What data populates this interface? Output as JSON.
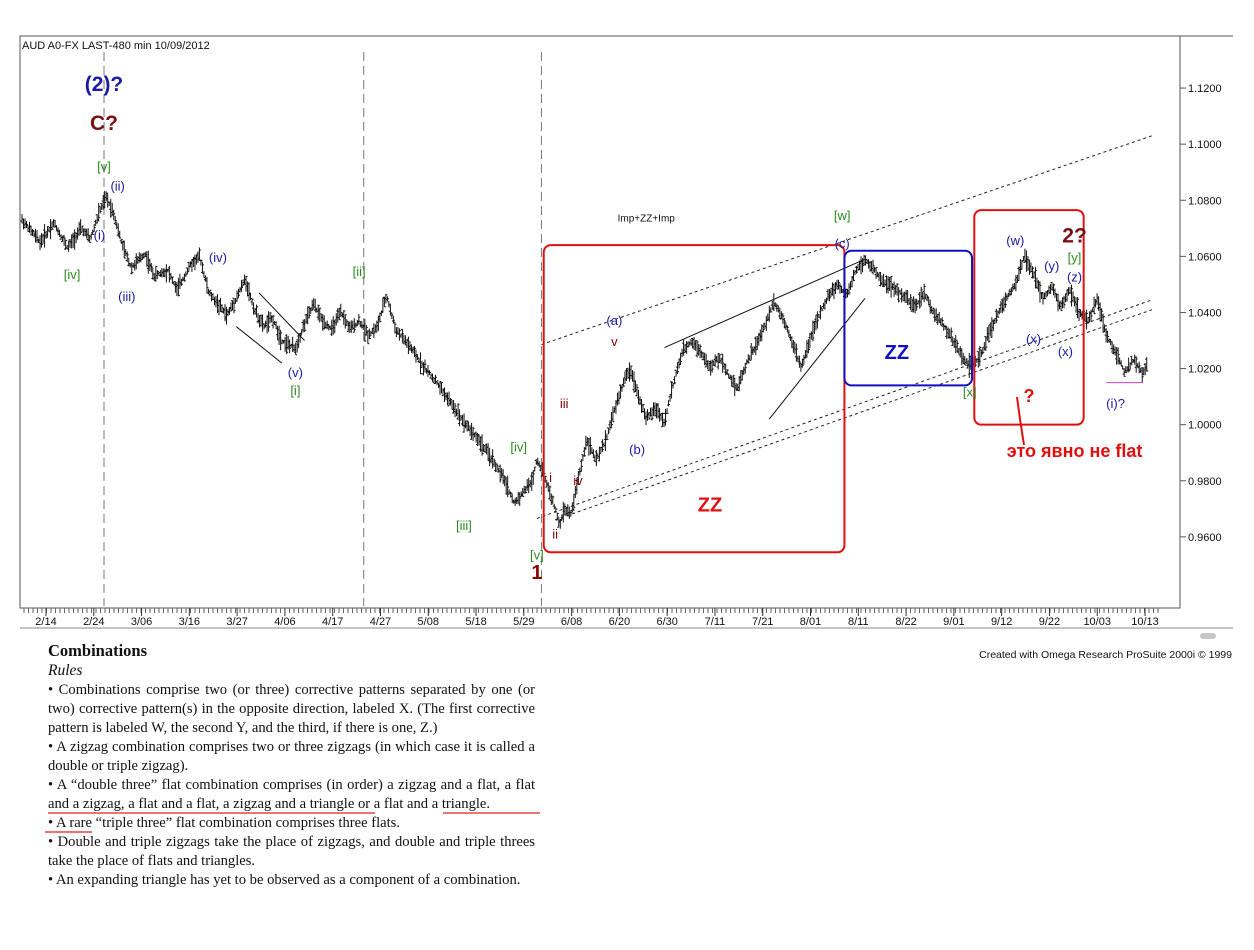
{
  "chart_data": {
    "type": "bar",
    "style": "OHLC price bars",
    "title": "AUD A0-FX LAST-480 min   10/09/2012",
    "credit": "Created with Omega Research ProSuite 2000i © 1999",
    "x_tick_labels": [
      "2/14",
      "2/24",
      "3/06",
      "3/16",
      "3/27",
      "4/06",
      "4/17",
      "4/27",
      "5/08",
      "5/18",
      "5/29",
      "6/08",
      "6/20",
      "6/30",
      "7/11",
      "7/21",
      "8/01",
      "8/11",
      "8/22",
      "9/01",
      "9/12",
      "9/22",
      "10/03",
      "10/13"
    ],
    "y_tick_labels": [
      "1.1200",
      "1.1000",
      "1.0800",
      "1.0600",
      "1.0400",
      "1.0200",
      "1.0000",
      "0.9800",
      "0.9600"
    ],
    "y_ticks": [
      1.12,
      1.1,
      1.08,
      1.06,
      1.04,
      1.02,
      1.0,
      0.98,
      0.96
    ],
    "ylim": [
      0.9375,
      1.13
    ],
    "x_range_days": [
      0,
      248
    ],
    "axis_position": "right",
    "price_path": [
      {
        "d": 0,
        "p": 1.073
      },
      {
        "d": 4,
        "p": 1.065
      },
      {
        "d": 7,
        "p": 1.072
      },
      {
        "d": 10,
        "p": 1.063
      },
      {
        "d": 13,
        "p": 1.07
      },
      {
        "d": 15,
        "p": 1.066
      },
      {
        "d": 17,
        "p": 1.076
      },
      {
        "d": 18.5,
        "p": 1.081
      },
      {
        "d": 20,
        "p": 1.076
      },
      {
        "d": 22,
        "p": 1.064
      },
      {
        "d": 24,
        "p": 1.056
      },
      {
        "d": 27,
        "p": 1.061
      },
      {
        "d": 29,
        "p": 1.053
      },
      {
        "d": 32,
        "p": 1.055
      },
      {
        "d": 34,
        "p": 1.048
      },
      {
        "d": 37,
        "p": 1.057
      },
      {
        "d": 39,
        "p": 1.06
      },
      {
        "d": 41,
        "p": 1.047
      },
      {
        "d": 43,
        "p": 1.043
      },
      {
        "d": 45,
        "p": 1.039
      },
      {
        "d": 47,
        "p": 1.045
      },
      {
        "d": 49,
        "p": 1.052
      },
      {
        "d": 51,
        "p": 1.041
      },
      {
        "d": 53,
        "p": 1.035
      },
      {
        "d": 55,
        "p": 1.038
      },
      {
        "d": 57,
        "p": 1.03
      },
      {
        "d": 60,
        "p": 1.027
      },
      {
        "d": 62,
        "p": 1.036
      },
      {
        "d": 64,
        "p": 1.043
      },
      {
        "d": 66,
        "p": 1.037
      },
      {
        "d": 68,
        "p": 1.034
      },
      {
        "d": 70,
        "p": 1.04
      },
      {
        "d": 72,
        "p": 1.034
      },
      {
        "d": 74,
        "p": 1.037
      },
      {
        "d": 76,
        "p": 1.032
      },
      {
        "d": 78,
        "p": 1.035
      },
      {
        "d": 80,
        "p": 1.046
      },
      {
        "d": 82,
        "p": 1.034
      },
      {
        "d": 85,
        "p": 1.028
      },
      {
        "d": 88,
        "p": 1.021
      },
      {
        "d": 91,
        "p": 1.015
      },
      {
        "d": 94,
        "p": 1.008
      },
      {
        "d": 97,
        "p": 1.001
      },
      {
        "d": 100,
        "p": 0.995
      },
      {
        "d": 103,
        "p": 0.988
      },
      {
        "d": 106,
        "p": 0.98
      },
      {
        "d": 108,
        "p": 0.972
      },
      {
        "d": 110,
        "p": 0.976
      },
      {
        "d": 112,
        "p": 0.98
      },
      {
        "d": 113,
        "p": 0.988
      },
      {
        "d": 115,
        "p": 0.98
      },
      {
        "d": 117,
        "p": 0.97
      },
      {
        "d": 118,
        "p": 0.964
      },
      {
        "d": 119,
        "p": 0.97
      },
      {
        "d": 120.5,
        "p": 0.968
      },
      {
        "d": 122,
        "p": 0.98
      },
      {
        "d": 124,
        "p": 0.995
      },
      {
        "d": 126,
        "p": 0.987
      },
      {
        "d": 128,
        "p": 0.994
      },
      {
        "d": 130,
        "p": 1.005
      },
      {
        "d": 132,
        "p": 1.015
      },
      {
        "d": 133.5,
        "p": 1.02
      },
      {
        "d": 135,
        "p": 1.012
      },
      {
        "d": 137,
        "p": 1.002
      },
      {
        "d": 139,
        "p": 1.006
      },
      {
        "d": 141,
        "p": 1.001
      },
      {
        "d": 143,
        "p": 1.015
      },
      {
        "d": 145,
        "p": 1.026
      },
      {
        "d": 147,
        "p": 1.03
      },
      {
        "d": 149,
        "p": 1.026
      },
      {
        "d": 151,
        "p": 1.02
      },
      {
        "d": 153,
        "p": 1.024
      },
      {
        "d": 155,
        "p": 1.018
      },
      {
        "d": 157,
        "p": 1.013
      },
      {
        "d": 159,
        "p": 1.022
      },
      {
        "d": 161,
        "p": 1.028
      },
      {
        "d": 163,
        "p": 1.035
      },
      {
        "d": 165,
        "p": 1.044
      },
      {
        "d": 167,
        "p": 1.038
      },
      {
        "d": 169,
        "p": 1.03
      },
      {
        "d": 171,
        "p": 1.02
      },
      {
        "d": 173,
        "p": 1.031
      },
      {
        "d": 175,
        "p": 1.039
      },
      {
        "d": 177,
        "p": 1.046
      },
      {
        "d": 179,
        "p": 1.05
      },
      {
        "d": 181,
        "p": 1.046
      },
      {
        "d": 183,
        "p": 1.055
      },
      {
        "d": 185,
        "p": 1.059
      },
      {
        "d": 186.5,
        "p": 1.056
      },
      {
        "d": 188,
        "p": 1.053
      },
      {
        "d": 190,
        "p": 1.05
      },
      {
        "d": 192,
        "p": 1.048
      },
      {
        "d": 194,
        "p": 1.045
      },
      {
        "d": 196,
        "p": 1.042
      },
      {
        "d": 198,
        "p": 1.047
      },
      {
        "d": 200,
        "p": 1.04
      },
      {
        "d": 202,
        "p": 1.036
      },
      {
        "d": 204,
        "p": 1.031
      },
      {
        "d": 206,
        "p": 1.025
      },
      {
        "d": 208,
        "p": 1.021
      },
      {
        "d": 210,
        "p": 1.023
      },
      {
        "d": 212,
        "p": 1.032
      },
      {
        "d": 214,
        "p": 1.039
      },
      {
        "d": 216,
        "p": 1.045
      },
      {
        "d": 218,
        "p": 1.05
      },
      {
        "d": 220,
        "p": 1.06
      },
      {
        "d": 222,
        "p": 1.054
      },
      {
        "d": 224,
        "p": 1.045
      },
      {
        "d": 226,
        "p": 1.049
      },
      {
        "d": 228,
        "p": 1.042
      },
      {
        "d": 230,
        "p": 1.048
      },
      {
        "d": 232,
        "p": 1.04
      },
      {
        "d": 234,
        "p": 1.037
      },
      {
        "d": 236,
        "p": 1.045
      },
      {
        "d": 238,
        "p": 1.032
      },
      {
        "d": 240,
        "p": 1.026
      },
      {
        "d": 242,
        "p": 1.019
      },
      {
        "d": 244,
        "p": 1.023
      },
      {
        "d": 246,
        "p": 1.018
      },
      {
        "d": 247,
        "p": 1.021
      }
    ],
    "vertical_markers_days": [
      18,
      75,
      114
    ],
    "markers": [
      {
        "text": "(2)?",
        "d": 18,
        "p": 1.119,
        "color": "#1a1aa6",
        "size": 21
      },
      {
        "text": "C?",
        "d": 18,
        "p": 1.105,
        "color": "#7a1010",
        "size": 21
      },
      {
        "text": "[v]",
        "d": 18,
        "p": 1.0905,
        "color": "#2e8b22",
        "size": 13
      },
      {
        "text": "(ii)",
        "d": 21,
        "p": 1.0835,
        "color": "#1a1aa6",
        "size": 13
      },
      {
        "text": "(i)",
        "d": 17,
        "p": 1.066,
        "color": "#1a1aa6",
        "size": 13
      },
      {
        "text": "[iv]",
        "d": 11,
        "p": 1.052,
        "color": "#2e8b22",
        "size": 13
      },
      {
        "text": "(iii)",
        "d": 23,
        "p": 1.044,
        "color": "#1a1aa6",
        "size": 13
      },
      {
        "text": "(iv)",
        "d": 43,
        "p": 1.058,
        "color": "#1a1aa6",
        "size": 13
      },
      {
        "text": "(v)",
        "d": 60,
        "p": 1.017,
        "color": "#1a1aa6",
        "size": 13
      },
      {
        "text": "[i]",
        "d": 60,
        "p": 1.0105,
        "color": "#2e8b22",
        "size": 13
      },
      {
        "text": "[ii]",
        "d": 74,
        "p": 1.053,
        "color": "#2e8b22",
        "size": 13
      },
      {
        "text": "[iii]",
        "d": 97,
        "p": 0.9625,
        "color": "#2e8b22",
        "size": 13
      },
      {
        "text": "[iv]",
        "d": 109,
        "p": 0.9905,
        "color": "#2e8b22",
        "size": 13
      },
      {
        "text": "[v]",
        "d": 113,
        "p": 0.952,
        "color": "#2e8b22",
        "size": 13
      },
      {
        "text": "1",
        "d": 113,
        "p": 0.945,
        "color": "#8b0000",
        "size": 20
      },
      {
        "text": "i",
        "d": 116,
        "p": 0.9795,
        "color": "#8b0000",
        "size": 13
      },
      {
        "text": "ii",
        "d": 117,
        "p": 0.9595,
        "color": "#8b0000",
        "size": 13
      },
      {
        "text": "iii",
        "d": 119,
        "p": 1.006,
        "color": "#8b0000",
        "size": 13
      },
      {
        "text": "iv",
        "d": 122,
        "p": 0.9785,
        "color": "#8b0000",
        "size": 13
      },
      {
        "text": "v",
        "d": 130,
        "p": 1.028,
        "color": "#8b0000",
        "size": 13
      },
      {
        "text": "(a)",
        "d": 130,
        "p": 1.0355,
        "color": "#1a1aa6",
        "size": 13
      },
      {
        "text": "(b)",
        "d": 135,
        "p": 0.9895,
        "color": "#1a1aa6",
        "size": 13
      },
      {
        "text": "Imp+ZZ+Imp",
        "d": 137,
        "p": 1.0725,
        "color": "#111111",
        "size": 10
      },
      {
        "text": "[w]",
        "d": 180,
        "p": 1.073,
        "color": "#2e8b22",
        "size": 13
      },
      {
        "text": "(c)",
        "d": 180,
        "p": 1.063,
        "color": "#1a1aa6",
        "size": 13
      },
      {
        "text": "ZZ",
        "d": 151,
        "p": 0.969,
        "color": "#e01010",
        "size": 20
      },
      {
        "text": "ZZ",
        "d": 192,
        "p": 1.0235,
        "color": "#1010c0",
        "size": 20
      },
      {
        "text": "[x]",
        "d": 208,
        "p": 1.01,
        "color": "#2e8b22",
        "size": 13
      },
      {
        "text": "(w)",
        "d": 218,
        "p": 1.064,
        "color": "#1a1aa6",
        "size": 13
      },
      {
        "text": "(y)",
        "d": 226,
        "p": 1.055,
        "color": "#1a1aa6",
        "size": 13
      },
      {
        "text": "(x)",
        "d": 222,
        "p": 1.029,
        "color": "#1a1aa6",
        "size": 13
      },
      {
        "text": "2?",
        "d": 231,
        "p": 1.065,
        "color": "#7a1010",
        "size": 21
      },
      {
        "text": "[y]",
        "d": 231,
        "p": 1.058,
        "color": "#2e8b22",
        "size": 13
      },
      {
        "text": "(z)",
        "d": 231,
        "p": 1.051,
        "color": "#1a1aa6",
        "size": 13
      },
      {
        "text": "(x)",
        "d": 229,
        "p": 1.0245,
        "color": "#1a1aa6",
        "size": 13
      },
      {
        "text": "(i)?",
        "d": 240,
        "p": 1.006,
        "color": "#1a1aa6",
        "size": 13
      },
      {
        "text": "?",
        "d": 221,
        "p": 1.008,
        "color": "#e01010",
        "size": 18
      },
      {
        "text": "это явно не flat",
        "d": 231,
        "p": 0.9885,
        "color": "#e01010",
        "size": 18
      }
    ],
    "boxes": [
      {
        "d1": 114.5,
        "d2": 180.5,
        "p1": 1.064,
        "p2": 0.9545,
        "color": "#e01010"
      },
      {
        "d1": 180.5,
        "d2": 208.5,
        "p1": 1.062,
        "p2": 1.014,
        "color": "#1010c0"
      },
      {
        "d1": 209,
        "d2": 233,
        "p1": 1.0765,
        "p2": 1.0,
        "color": "#e01010"
      }
    ]
  },
  "doc": {
    "title": "Combinations",
    "subtitle": "Rules",
    "rules": [
      "• Combinations comprise two (or three) corrective patterns separated by one (or two) corrective pattern(s) in the opposite direction, labeled X. (The first corrective pattern is labeled W, the second Y, and the third, if there is one, Z.)",
      "• A zigzag combination comprises two or three zigzags (in which case it is called a double or triple zigzag)."
    ],
    "rule3_a": "• A “double three” flat combination comprises",
    "rule3_b": " (in order) ",
    "rule3_c": "a zigzag and a flat,",
    "rule3_d": " a flat and a zigzag, a flat and a flat, a zigzag and a triangle or a flat and a triangle.",
    "rules_after": [
      "• A rare “triple three” flat combination comprises three flats.",
      "• Double and triple zigzags take the place of zigzags, and double and triple threes take the place of flats and triangles.",
      "• An expanding triangle has yet to be observed as a component of a combination."
    ]
  }
}
